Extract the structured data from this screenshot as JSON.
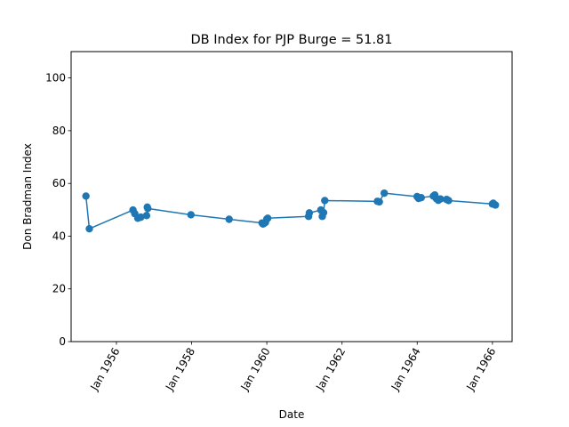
{
  "chart_data": {
    "type": "line",
    "title": "DB Index for PJP Burge = 51.81",
    "xlabel": "Date",
    "ylabel": "Don Bradman Index",
    "xlim": [
      "1954-10-18",
      "1966-07-11"
    ],
    "ylim": [
      0,
      110
    ],
    "grid": false,
    "marker": "circle",
    "line_color": "#1f77b4",
    "x_ticks": [
      {
        "date": "1956-01-01",
        "label": "Jan 1956"
      },
      {
        "date": "1958-01-01",
        "label": "Jan 1958"
      },
      {
        "date": "1960-01-01",
        "label": "Jan 1960"
      },
      {
        "date": "1962-01-01",
        "label": "Jan 1962"
      },
      {
        "date": "1964-01-01",
        "label": "Jan 1964"
      },
      {
        "date": "1966-01-01",
        "label": "Jan 1966"
      }
    ],
    "y_ticks": [
      0,
      20,
      40,
      60,
      80,
      100
    ],
    "series": [
      {
        "x": [
          "1955-03-11",
          "1955-04-13",
          "1956-06-10",
          "1956-06-28",
          "1956-07-27",
          "1956-08-25",
          "1956-10-20",
          "1956-10-27",
          "1956-11-01",
          "1957-12-25",
          "1958-12-31",
          "1959-11-16",
          "1959-11-25",
          "1959-12-04",
          "1959-12-19",
          "1960-01-01",
          "1960-01-10",
          "1961-02-10",
          "1961-02-17",
          "1961-06-09",
          "1961-06-23",
          "1961-07-06",
          "1961-07-17",
          "1962-12-10",
          "1962-12-29",
          "1963-02-15",
          "1963-12-31",
          "1964-01-14",
          "1964-01-24",
          "1964-02-09",
          "1964-06-06",
          "1964-06-20",
          "1964-07-06",
          "1964-07-24",
          "1964-08-14",
          "1964-10-13",
          "1964-11-01",
          "1965-12-31",
          "1966-01-09",
          "1966-01-30"
        ],
        "values": [
          55.2,
          42.8,
          49.9,
          48.5,
          46.8,
          47.2,
          47.8,
          51.0,
          50.5,
          48.1,
          46.4,
          45.0,
          44.6,
          44.8,
          45.2,
          46.5,
          46.8,
          47.5,
          48.8,
          49.9,
          47.5,
          48.9,
          53.5,
          53.2,
          53.0,
          56.3,
          55.0,
          54.3,
          54.5,
          54.6,
          55.2,
          55.6,
          54.2,
          53.6,
          54.1,
          53.9,
          53.5,
          52.2,
          52.5,
          51.8
        ]
      }
    ]
  }
}
